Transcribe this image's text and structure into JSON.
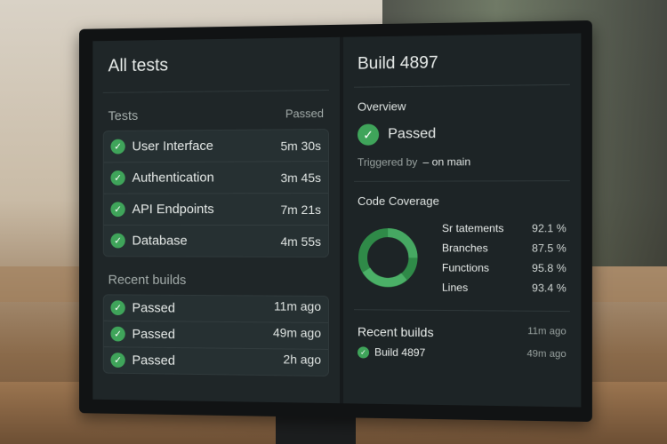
{
  "left": {
    "title": "All tests",
    "tests_header": "Tests",
    "tests_col": "Passed",
    "tests": [
      {
        "name": "User Interface",
        "time": "5m 30s"
      },
      {
        "name": "Authentication",
        "time": "3m 45s"
      },
      {
        "name": "API Endpoints",
        "time": "7m 21s"
      },
      {
        "name": "Database",
        "time": "4m 55s"
      }
    ],
    "recent_header": "Recent builds",
    "builds": [
      {
        "status": "Passed",
        "ago": "11m ago"
      },
      {
        "status": "Passed",
        "ago": "49m ago"
      },
      {
        "status": "Passed",
        "ago": "2h ago"
      }
    ]
  },
  "right": {
    "title": "Build 4897",
    "overview": "Overview",
    "status": "Passed",
    "triggered_label": "Triggered by",
    "triggered_value": "– on main",
    "coverage_title": "Code Coverage",
    "coverage": [
      {
        "label": "Sr tatements",
        "value": "92.1 %"
      },
      {
        "label": "Branches",
        "value": "87.5 %"
      },
      {
        "label": "Functions",
        "value": "95.8 %"
      },
      {
        "label": "Lines",
        "value": "93.4 %"
      }
    ],
    "recent_title": "Recent builds",
    "recent_ago_1": "11m ago",
    "recent_build": "Build 4897",
    "recent_ago_2": "49m ago"
  },
  "colors": {
    "accent": "#3fa45a",
    "panel": "#1f2628"
  },
  "icons": {
    "check": "check-circle-icon"
  }
}
